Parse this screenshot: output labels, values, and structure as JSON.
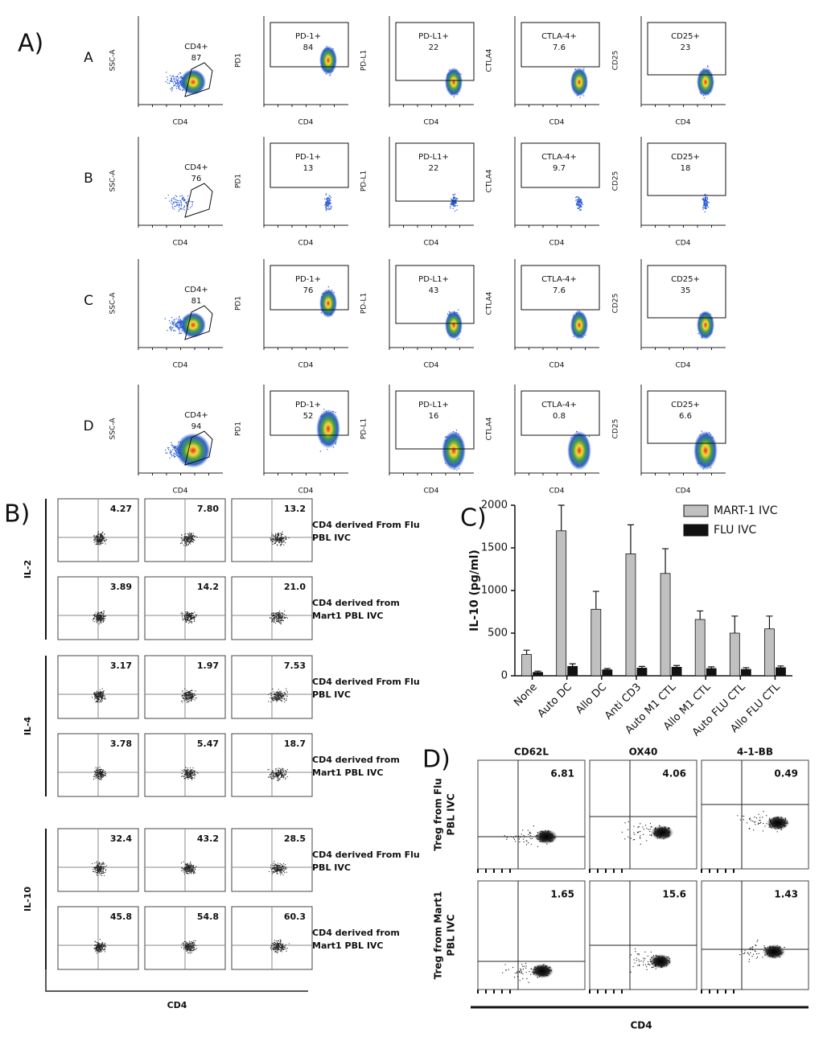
{
  "panel_a": {
    "label": "A)",
    "x_label": "CD4",
    "y_labels": [
      "SSC-A",
      "PD1",
      "PD-L1",
      "CTLA4",
      "CD25"
    ],
    "gates": [
      "CD4+",
      "PD-1+",
      "PD-L1+",
      "CTLA-4+",
      "CD25+"
    ],
    "rows": [
      {
        "label": "A",
        "values": [
          "87",
          "84",
          "22",
          "7.6",
          "23"
        ]
      },
      {
        "label": "B",
        "values": [
          "76",
          "13",
          "22",
          "9.7",
          "18"
        ]
      },
      {
        "label": "C",
        "values": [
          "81",
          "76",
          "43",
          "7.6",
          "35"
        ]
      },
      {
        "label": "D",
        "values": [
          "94",
          "52",
          "16",
          "0.8",
          "6.6"
        ]
      }
    ]
  },
  "panel_b": {
    "label": "B)",
    "x_label": "CD4",
    "groups": [
      {
        "label": "IL-2",
        "rows": [
          {
            "caption": [
              "CD4  derived From Flu",
              "PBL IVC"
            ],
            "values": [
              "4.27",
              "7.80",
              "13.2"
            ]
          },
          {
            "caption": [
              "CD4 derived from",
              "Mart1 PBL IVC"
            ],
            "values": [
              "3.89",
              "14.2",
              "21.0"
            ]
          }
        ]
      },
      {
        "label": "IL-4",
        "rows": [
          {
            "caption": [
              "CD4  derived From Flu",
              "PBL IVC"
            ],
            "values": [
              "3.17",
              "1.97",
              "7.53"
            ]
          },
          {
            "caption": [
              "CD4 derived from",
              "Mart1 PBL IVC"
            ],
            "values": [
              "3.78",
              "5.47",
              "18.7"
            ]
          }
        ]
      },
      {
        "label": "IL-10",
        "rows": [
          {
            "caption": [
              "CD4  derived From Flu",
              "PBL IVC"
            ],
            "values": [
              "32.4",
              "43.2",
              "28.5"
            ]
          },
          {
            "caption": [
              "CD4 derived from",
              "Mart1 PBL IVC"
            ],
            "values": [
              "45.8",
              "54.8",
              "60.3"
            ]
          }
        ]
      }
    ]
  },
  "chart_data": {
    "type": "bar",
    "label": "C)",
    "y_label": "IL-10 (pg/ml)",
    "categories": [
      "None",
      "Auto DC",
      "Allo DC",
      "Anti CD3",
      "Auto M1 CTL",
      "Allo M1 CTL",
      "Auto FLU CTL",
      "Allo FLU CTL"
    ],
    "series": [
      {
        "name": "MART-1 IVC",
        "color": "#c0c0c0",
        "values": [
          250,
          1700,
          780,
          1430,
          1200,
          660,
          500,
          550
        ],
        "errors": [
          50,
          300,
          210,
          340,
          290,
          100,
          200,
          150
        ]
      },
      {
        "name": "FLU IVC",
        "color": "#111111",
        "values": [
          40,
          110,
          70,
          90,
          100,
          85,
          75,
          95
        ],
        "errors": [
          15,
          30,
          15,
          20,
          20,
          20,
          20,
          20
        ]
      }
    ],
    "ylim": [
      0,
      2000
    ],
    "yticks": [
      0,
      500,
      1000,
      1500,
      2000
    ],
    "legend": "upper right"
  },
  "panel_d": {
    "label": "D)",
    "x_label": "CD4",
    "columns": [
      "CD62L",
      "OX40",
      "4-1-BB"
    ],
    "rows": [
      {
        "label": [
          "Treg  from Flu",
          "PBL IVC"
        ],
        "values": [
          "6.81",
          "4.06",
          "0.49"
        ]
      },
      {
        "label": [
          "Treg  from Mart1",
          "PBL IVC"
        ],
        "values": [
          "1.65",
          "15.6",
          "1.43"
        ]
      }
    ]
  }
}
